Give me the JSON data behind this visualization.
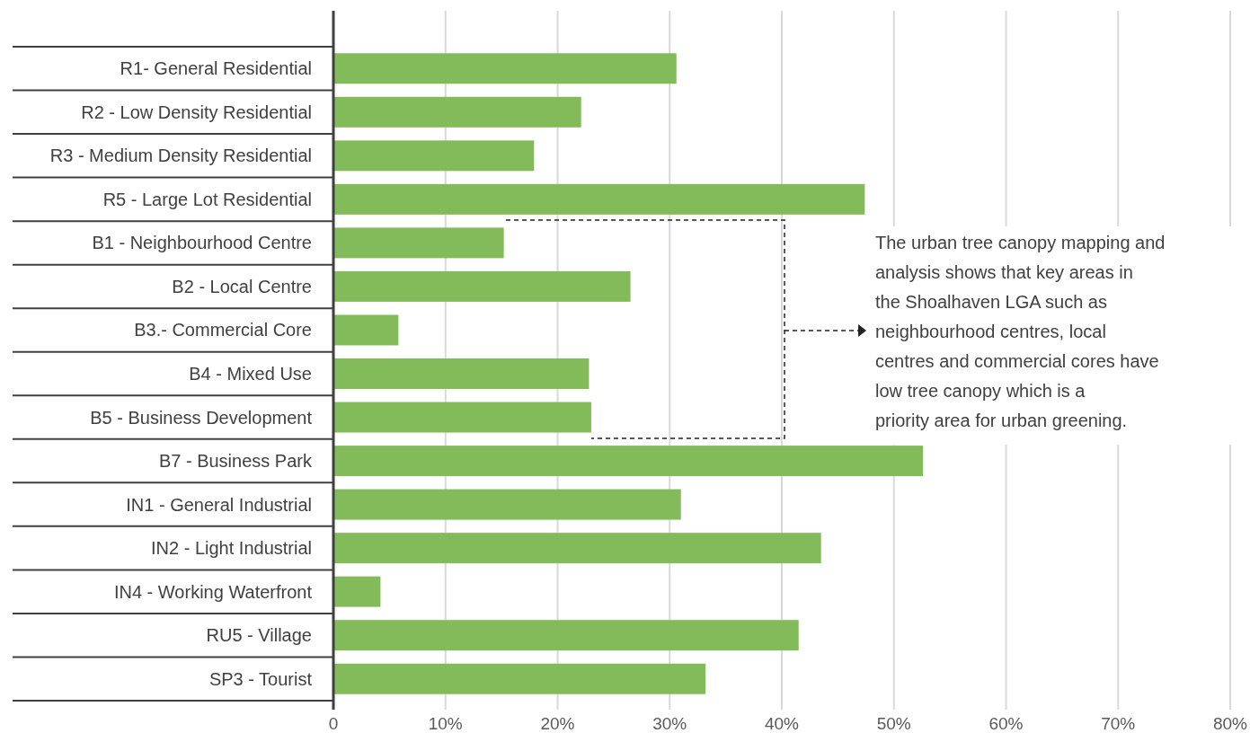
{
  "chart_data": {
    "type": "bar",
    "orientation": "horizontal",
    "categories": [
      "R1- General Residential",
      "R2 - Low Density Residential",
      "R3 - Medium Density Residential",
      "R5 - Large Lot Residential",
      "B1 - Neighbourhood Centre",
      "B2 - Local Centre",
      "B3.- Commercial Core",
      "B4 - Mixed Use",
      "B5 - Business Development",
      "B7 - Business Park",
      "IN1 - General Industrial",
      "IN2 - Light Industrial",
      "IN4 - Working Waterfront",
      "RU5 - Village",
      "SP3 - Tourist"
    ],
    "values": [
      30.6,
      22.1,
      17.9,
      47.4,
      15.2,
      26.5,
      5.8,
      22.8,
      23.0,
      52.6,
      31.0,
      43.5,
      4.2,
      41.5,
      33.2
    ],
    "color": "#84bb5a",
    "xlim": [
      0,
      80
    ],
    "xticks": [
      {
        "value": 0,
        "label": "0"
      },
      {
        "value": 10,
        "label": "10%"
      },
      {
        "value": 20,
        "label": "20%"
      },
      {
        "value": 30,
        "label": "30%"
      },
      {
        "value": 40,
        "label": "40%"
      },
      {
        "value": 50,
        "label": "50%"
      },
      {
        "value": 60,
        "label": "60%"
      },
      {
        "value": 70,
        "label": "70%"
      },
      {
        "value": 80,
        "label": "80%"
      }
    ],
    "grid": "x",
    "annotations": [
      "The urban tree canopy mapping and analysis shows that key areas in the Shoalhaven LGA such as neighbourhood centres, local centres and commercial cores have low tree canopy which is a priority area for urban greening."
    ]
  }
}
